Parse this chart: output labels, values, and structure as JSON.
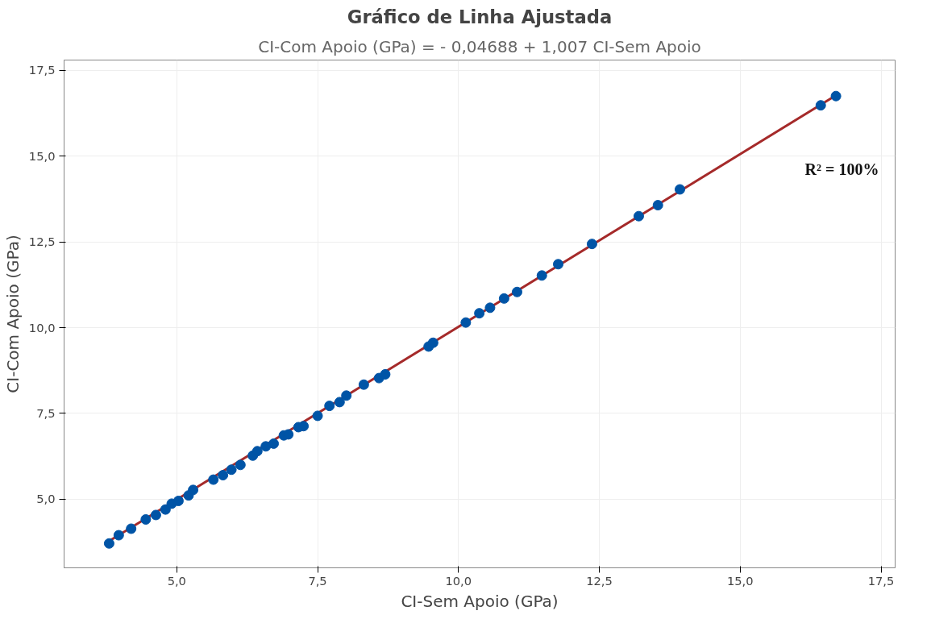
{
  "chart_data": {
    "type": "scatter",
    "title": "Gráfico de Linha Ajustada",
    "subtitle": "CI-Com Apoio (GPa) = - 0,04688 + 1,007 CI-Sem Apoio",
    "xlabel": "CI-Sem Apoio (GPa)",
    "ylabel": "CI-Com Apoio (GPa)",
    "xlim": [
      3.0,
      17.75
    ],
    "ylim": [
      3.0,
      17.8
    ],
    "xticks": [
      {
        "value": 5,
        "label": "5,0"
      },
      {
        "value": 7.5,
        "label": "7,5"
      },
      {
        "value": 10,
        "label": "10,0"
      },
      {
        "value": 12.5,
        "label": "12,5"
      },
      {
        "value": 15,
        "label": "15,0"
      },
      {
        "value": 17.5,
        "label": "17,5"
      }
    ],
    "yticks": [
      {
        "value": 5,
        "label": "5,0"
      },
      {
        "value": 7.5,
        "label": "7,5"
      },
      {
        "value": 10,
        "label": "10,0"
      },
      {
        "value": 12.5,
        "label": "12,5"
      },
      {
        "value": 15,
        "label": "15,0"
      },
      {
        "value": 17.5,
        "label": "17,5"
      }
    ],
    "grid": true,
    "series": [
      {
        "color": "#0054a6",
        "marker": "circle",
        "x": [
          3.8,
          3.97,
          4.19,
          4.45,
          4.63,
          4.8,
          4.91,
          5.03,
          5.21,
          5.29,
          5.65,
          5.82,
          5.97,
          6.13,
          6.35,
          6.43,
          6.58,
          6.72,
          6.9,
          6.98,
          7.16,
          7.25,
          7.5,
          7.71,
          7.89,
          8.01,
          8.32,
          8.59,
          8.7,
          9.47,
          9.55,
          10.13,
          10.37,
          10.56,
          10.81,
          11.04,
          11.48,
          11.77,
          12.37,
          13.2,
          13.54,
          13.93,
          16.43,
          16.7
        ],
        "values": [
          3.71,
          3.95,
          4.14,
          4.41,
          4.54,
          4.7,
          4.87,
          4.95,
          5.11,
          5.27,
          5.57,
          5.7,
          5.86,
          6.0,
          6.27,
          6.4,
          6.54,
          6.62,
          6.86,
          6.89,
          7.1,
          7.13,
          7.43,
          7.72,
          7.83,
          8.02,
          8.34,
          8.53,
          8.64,
          9.45,
          9.56,
          10.15,
          10.42,
          10.58,
          10.85,
          11.04,
          11.52,
          11.85,
          12.44,
          13.25,
          13.57,
          14.03,
          16.48,
          16.75
        ]
      },
      {
        "type": "line",
        "color": "#a52a2a",
        "line_style": "solid",
        "x": [
          3.8,
          16.7
        ],
        "values": [
          3.78,
          16.77
        ]
      }
    ],
    "annotations": [
      "R² = 100%"
    ]
  }
}
